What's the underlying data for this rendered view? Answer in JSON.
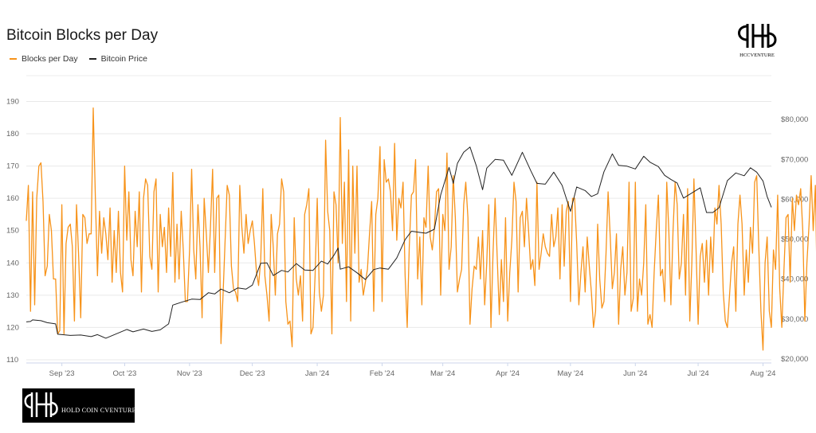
{
  "chart_data": {
    "type": "line",
    "title": "Bitcoin Blocks per Day",
    "x_tick_labels": [
      "Sep '23",
      "Oct '23",
      "Nov '23",
      "Dec '23",
      "Jan '24",
      "Feb '24",
      "Mar '24",
      "Apr '24",
      "May '24",
      "Jun '24",
      "Jul '24",
      "Aug '24"
    ],
    "x_range": [
      "2023-08-15",
      "2024-08-05"
    ],
    "left_axis": {
      "ticks": [
        110,
        120,
        130,
        140,
        150,
        160,
        170,
        180,
        190
      ],
      "ylim": [
        109,
        198
      ]
    },
    "right_axis": {
      "ticks": [
        "$20,000",
        "$30,000",
        "$40,000",
        "$50,000",
        "$60,000",
        "$70,000",
        "$80,000"
      ],
      "values": [
        20000,
        30000,
        40000,
        50000,
        60000,
        70000,
        80000
      ],
      "ylim": [
        19000,
        91000
      ]
    },
    "grid": true,
    "legend_position": "top-left",
    "series": [
      {
        "name": "Blocks per Day",
        "axis": "left",
        "color": "#f7931a",
        "values": [
          153,
          164,
          125,
          162,
          127,
          160,
          170,
          171,
          159,
          136,
          139,
          155,
          150,
          135,
          135,
          118,
          119,
          158,
          118,
          146,
          151,
          152,
          145,
          122,
          158,
          142,
          123,
          155,
          154,
          146,
          149,
          149,
          188,
          160,
          136,
          156,
          143,
          154,
          149,
          141,
          157,
          134,
          150,
          137,
          156,
          137,
          131,
          170,
          147,
          162,
          141,
          136,
          156,
          145,
          162,
          131,
          160,
          166,
          164,
          142,
          138,
          162,
          166,
          131,
          155,
          145,
          151,
          137,
          157,
          142,
          168,
          134,
          152,
          135,
          156,
          144,
          128,
          128,
          144,
          169,
          144,
          135,
          158,
          145,
          123,
          160,
          149,
          137,
          151,
          169,
          137,
          160,
          161,
          115,
          130,
          147,
          164,
          161,
          139,
          132,
          131,
          128,
          164,
          151,
          143,
          155,
          146,
          150,
          153,
          146,
          137,
          133,
          141,
          163,
          136,
          130,
          122,
          155,
          145,
          130,
          149,
          152,
          166,
          162,
          128,
          121,
          122,
          114,
          154,
          135,
          130,
          136,
          122,
          155,
          158,
          163,
          118,
          120,
          136,
          160,
          131,
          125,
          130,
          178,
          156,
          150,
          118,
          162,
          158,
          140,
          185,
          146,
          165,
          128,
          175,
          122,
          170,
          143,
          170,
          134,
          138,
          130,
          134,
          138,
          149,
          159,
          125,
          155,
          160,
          176,
          128,
          172,
          165,
          166,
          162,
          150,
          177,
          147,
          160,
          157,
          165,
          136,
          120,
          145,
          161,
          162,
          172,
          135,
          148,
          127,
          154,
          151,
          170,
          148,
          144,
          151,
          162,
          163,
          130,
          155,
          150,
          174,
          138,
          145,
          167,
          154,
          131,
          135,
          138,
          158,
          165,
          154,
          121,
          132,
          139,
          138,
          148,
          135,
          150,
          127,
          140,
          158,
          120,
          143,
          160,
          142,
          124,
          141,
          128,
          154,
          122,
          137,
          147,
          165,
          159,
          131,
          154,
          156,
          145,
          160,
          150,
          138,
          141,
          133,
          165,
          138,
          143,
          149,
          145,
          143,
          142,
          155,
          145,
          148,
          157,
          135,
          158,
          139,
          156,
          159,
          128,
          160,
          160,
          146,
          127,
          137,
          145,
          131,
          148,
          139,
          131,
          120,
          125,
          152,
          135,
          126,
          128,
          143,
          162,
          148,
          132,
          137,
          149,
          121,
          138,
          145,
          130,
          137,
          165,
          125,
          129,
          165,
          125,
          135,
          130,
          140,
          158,
          121,
          124,
          120,
          137,
          150,
          161,
          136,
          138,
          128,
          165,
          150,
          127,
          150,
          165,
          158,
          135,
          140,
          155,
          130,
          163,
          122,
          140,
          166,
          145,
          121,
          142,
          146,
          134,
          147,
          130,
          148,
          137,
          157,
          152,
          164,
          152,
          131,
          122,
          120,
          130,
          140,
          145,
          125,
          152,
          161,
          152,
          130,
          144,
          134,
          151,
          143,
          165,
          167,
          145,
          125,
          113,
          140,
          148,
          125,
          120,
          144,
          138,
          161,
          132,
          120,
          138,
          154,
          155,
          134,
          160,
          150,
          161,
          158,
          163,
          150,
          122,
          140,
          152,
          167,
          150,
          164,
          127,
          145,
          162,
          148,
          138,
          167,
          180,
          152,
          172,
          155,
          149,
          162,
          147,
          152,
          145,
          165,
          178,
          160,
          147,
          145,
          127,
          140,
          142,
          145
        ]
      },
      {
        "name": "Bitcoin Price",
        "axis": "right",
        "color": "#222222",
        "points": [
          [
            "2023-08-15",
            29300
          ],
          [
            "2023-08-17",
            29400
          ],
          [
            "2023-08-18",
            29800
          ],
          [
            "2023-08-22",
            29600
          ],
          [
            "2023-08-25",
            29100
          ],
          [
            "2023-08-29",
            28800
          ],
          [
            "2023-08-30",
            26200
          ],
          [
            "2023-09-05",
            25900
          ],
          [
            "2023-09-10",
            26000
          ],
          [
            "2023-09-15",
            25600
          ],
          [
            "2023-09-18",
            26100
          ],
          [
            "2023-09-22",
            25200
          ],
          [
            "2023-09-27",
            26300
          ],
          [
            "2023-10-02",
            27400
          ],
          [
            "2023-10-05",
            26800
          ],
          [
            "2023-10-10",
            27500
          ],
          [
            "2023-10-14",
            26900
          ],
          [
            "2023-10-18",
            27300
          ],
          [
            "2023-10-22",
            28800
          ],
          [
            "2023-10-24",
            33500
          ],
          [
            "2023-10-28",
            34200
          ],
          [
            "2023-11-02",
            35000
          ],
          [
            "2023-11-06",
            34900
          ],
          [
            "2023-11-10",
            36600
          ],
          [
            "2023-11-13",
            36300
          ],
          [
            "2023-11-16",
            37500
          ],
          [
            "2023-11-20",
            36600
          ],
          [
            "2023-11-24",
            37800
          ],
          [
            "2023-11-28",
            37500
          ],
          [
            "2023-12-01",
            38500
          ],
          [
            "2023-12-05",
            44000
          ],
          [
            "2023-12-08",
            44100
          ],
          [
            "2023-12-11",
            40900
          ],
          [
            "2023-12-15",
            42200
          ],
          [
            "2023-12-18",
            41800
          ],
          [
            "2023-12-22",
            43900
          ],
          [
            "2023-12-26",
            42300
          ],
          [
            "2023-12-30",
            42200
          ],
          [
            "2024-01-03",
            44500
          ],
          [
            "2024-01-06",
            43800
          ],
          [
            "2024-01-09",
            46000
          ],
          [
            "2024-01-11",
            47800
          ],
          [
            "2024-01-12",
            42500
          ],
          [
            "2024-01-16",
            43100
          ],
          [
            "2024-01-20",
            41600
          ],
          [
            "2024-01-24",
            39900
          ],
          [
            "2024-01-28",
            42400
          ],
          [
            "2024-01-31",
            42800
          ],
          [
            "2024-02-04",
            42500
          ],
          [
            "2024-02-08",
            45300
          ],
          [
            "2024-02-12",
            49900
          ],
          [
            "2024-02-15",
            52000
          ],
          [
            "2024-02-19",
            51700
          ],
          [
            "2024-02-22",
            51500
          ],
          [
            "2024-02-26",
            52500
          ],
          [
            "2024-02-29",
            61100
          ],
          [
            "2024-03-04",
            68000
          ],
          [
            "2024-03-06",
            64000
          ],
          [
            "2024-03-08",
            69000
          ],
          [
            "2024-03-11",
            71800
          ],
          [
            "2024-03-14",
            73100
          ],
          [
            "2024-03-17",
            68400
          ],
          [
            "2024-03-20",
            62400
          ],
          [
            "2024-03-22",
            67800
          ],
          [
            "2024-03-26",
            70000
          ],
          [
            "2024-03-30",
            69800
          ],
          [
            "2024-04-03",
            66000
          ],
          [
            "2024-04-08",
            71800
          ],
          [
            "2024-04-12",
            67200
          ],
          [
            "2024-04-15",
            64000
          ],
          [
            "2024-04-19",
            63800
          ],
          [
            "2024-04-23",
            66800
          ],
          [
            "2024-04-27",
            63500
          ],
          [
            "2024-05-01",
            57000
          ],
          [
            "2024-05-04",
            63100
          ],
          [
            "2024-05-08",
            62200
          ],
          [
            "2024-05-11",
            60700
          ],
          [
            "2024-05-14",
            61400
          ],
          [
            "2024-05-17",
            66900
          ],
          [
            "2024-05-21",
            71400
          ],
          [
            "2024-05-24",
            68500
          ],
          [
            "2024-05-28",
            68300
          ],
          [
            "2024-06-01",
            67600
          ],
          [
            "2024-06-05",
            70800
          ],
          [
            "2024-06-08",
            69300
          ],
          [
            "2024-06-12",
            68200
          ],
          [
            "2024-06-15",
            66000
          ],
          [
            "2024-06-18",
            65000
          ],
          [
            "2024-06-21",
            64100
          ],
          [
            "2024-06-24",
            60300
          ],
          [
            "2024-06-28",
            61600
          ],
          [
            "2024-07-02",
            62900
          ],
          [
            "2024-07-05",
            56700
          ],
          [
            "2024-07-08",
            56700
          ],
          [
            "2024-07-11",
            57900
          ],
          [
            "2024-07-15",
            64700
          ],
          [
            "2024-07-19",
            66600
          ],
          [
            "2024-07-23",
            65900
          ],
          [
            "2024-07-26",
            67900
          ],
          [
            "2024-07-29",
            66800
          ],
          [
            "2024-08-01",
            64600
          ],
          [
            "2024-08-03",
            60700
          ],
          [
            "2024-08-05",
            58000
          ]
        ]
      }
    ]
  },
  "logos": {
    "top_caption": "HCCVENTURE",
    "bottom_caption": "HOLD COIN CVENTURE"
  }
}
